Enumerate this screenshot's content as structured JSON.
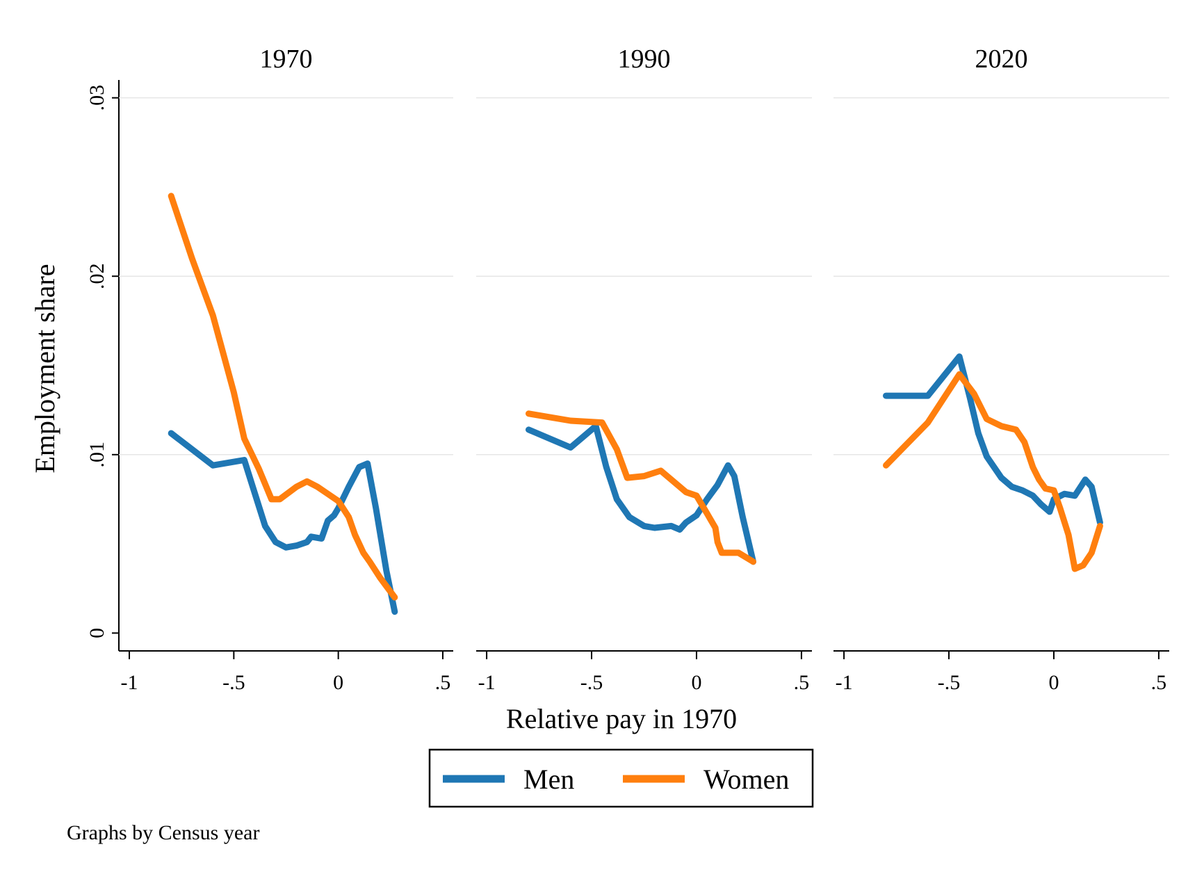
{
  "chart_data": {
    "type": "line",
    "xlabel": "Relative pay in 1970",
    "ylabel": "Employment share",
    "note": "Graphs by Census year",
    "xlim": [
      -1.05,
      0.55
    ],
    "ylim": [
      -0.001,
      0.031
    ],
    "xticks": [
      {
        "value": -1,
        "label": "-1"
      },
      {
        "value": -0.5,
        "label": "-.5"
      },
      {
        "value": 0,
        "label": "0"
      },
      {
        "value": 0.5,
        "label": ".5"
      }
    ],
    "yticks": [
      {
        "value": 0,
        "label": "0"
      },
      {
        "value": 0.01,
        "label": ".01"
      },
      {
        "value": 0.02,
        "label": ".02"
      },
      {
        "value": 0.03,
        "label": ".03"
      }
    ],
    "grid": true,
    "legend": {
      "position": "bottom",
      "entries": [
        {
          "name": "Men",
          "color": "#1f77b4"
        },
        {
          "name": "Women",
          "color": "#ff7f0e"
        }
      ]
    },
    "colors": {
      "Men": "#1f77b4",
      "Women": "#ff7f0e"
    },
    "panels": [
      {
        "title": "1970",
        "series": [
          {
            "name": "Men",
            "points": [
              [
                -0.8,
                0.0112
              ],
              [
                -0.6,
                0.0094
              ],
              [
                -0.45,
                0.0097
              ],
              [
                -0.35,
                0.006
              ],
              [
                -0.3,
                0.0051
              ],
              [
                -0.25,
                0.0048
              ],
              [
                -0.2,
                0.0049
              ],
              [
                -0.15,
                0.0051
              ],
              [
                -0.13,
                0.0054
              ],
              [
                -0.08,
                0.0053
              ],
              [
                -0.05,
                0.0063
              ],
              [
                -0.02,
                0.0066
              ],
              [
                0.0,
                0.007
              ],
              [
                0.05,
                0.0082
              ],
              [
                0.1,
                0.0093
              ],
              [
                0.14,
                0.0095
              ],
              [
                0.18,
                0.007
              ],
              [
                0.23,
                0.0035
              ],
              [
                0.27,
                0.0012
              ]
            ]
          },
          {
            "name": "Women",
            "points": [
              [
                -0.8,
                0.0245
              ],
              [
                -0.7,
                0.021
              ],
              [
                -0.6,
                0.0178
              ],
              [
                -0.5,
                0.0135
              ],
              [
                -0.45,
                0.0109
              ],
              [
                -0.38,
                0.0092
              ],
              [
                -0.32,
                0.0075
              ],
              [
                -0.28,
                0.0075
              ],
              [
                -0.2,
                0.0082
              ],
              [
                -0.15,
                0.0085
              ],
              [
                -0.1,
                0.0082
              ],
              [
                -0.05,
                0.0078
              ],
              [
                0.0,
                0.0074
              ],
              [
                0.05,
                0.0065
              ],
              [
                0.08,
                0.0055
              ],
              [
                0.12,
                0.0045
              ],
              [
                0.15,
                0.004
              ],
              [
                0.2,
                0.0031
              ],
              [
                0.27,
                0.002
              ]
            ]
          }
        ]
      },
      {
        "title": "1990",
        "series": [
          {
            "name": "Men",
            "points": [
              [
                -0.8,
                0.0114
              ],
              [
                -0.6,
                0.0104
              ],
              [
                -0.48,
                0.0116
              ],
              [
                -0.43,
                0.0093
              ],
              [
                -0.38,
                0.0075
              ],
              [
                -0.32,
                0.0065
              ],
              [
                -0.25,
                0.006
              ],
              [
                -0.2,
                0.0059
              ],
              [
                -0.12,
                0.006
              ],
              [
                -0.08,
                0.0058
              ],
              [
                -0.05,
                0.0062
              ],
              [
                0.0,
                0.0066
              ],
              [
                0.05,
                0.0075
              ],
              [
                0.1,
                0.0083
              ],
              [
                0.15,
                0.0094
              ],
              [
                0.18,
                0.0088
              ],
              [
                0.22,
                0.0065
              ],
              [
                0.27,
                0.004
              ]
            ]
          },
          {
            "name": "Women",
            "points": [
              [
                -0.8,
                0.0123
              ],
              [
                -0.6,
                0.0119
              ],
              [
                -0.45,
                0.0118
              ],
              [
                -0.38,
                0.0103
              ],
              [
                -0.33,
                0.0087
              ],
              [
                -0.25,
                0.0088
              ],
              [
                -0.17,
                0.0091
              ],
              [
                -0.12,
                0.0086
              ],
              [
                -0.05,
                0.0079
              ],
              [
                0.0,
                0.0077
              ],
              [
                0.05,
                0.0067
              ],
              [
                0.09,
                0.0059
              ],
              [
                0.1,
                0.0051
              ],
              [
                0.12,
                0.0045
              ],
              [
                0.2,
                0.0045
              ],
              [
                0.27,
                0.004
              ]
            ]
          }
        ]
      },
      {
        "title": "2020",
        "series": [
          {
            "name": "Men",
            "points": [
              [
                -0.8,
                0.0133
              ],
              [
                -0.6,
                0.0133
              ],
              [
                -0.45,
                0.0155
              ],
              [
                -0.4,
                0.0132
              ],
              [
                -0.36,
                0.0112
              ],
              [
                -0.32,
                0.0099
              ],
              [
                -0.25,
                0.0087
              ],
              [
                -0.2,
                0.0082
              ],
              [
                -0.15,
                0.008
              ],
              [
                -0.1,
                0.0077
              ],
              [
                -0.06,
                0.0072
              ],
              [
                -0.02,
                0.0068
              ],
              [
                0.0,
                0.0075
              ],
              [
                0.05,
                0.0078
              ],
              [
                0.1,
                0.0077
              ],
              [
                0.15,
                0.0086
              ],
              [
                0.18,
                0.0082
              ],
              [
                0.22,
                0.0062
              ]
            ]
          },
          {
            "name": "Women",
            "points": [
              [
                -0.8,
                0.0094
              ],
              [
                -0.6,
                0.0118
              ],
              [
                -0.45,
                0.0145
              ],
              [
                -0.38,
                0.0134
              ],
              [
                -0.32,
                0.012
              ],
              [
                -0.25,
                0.0116
              ],
              [
                -0.18,
                0.0114
              ],
              [
                -0.14,
                0.0107
              ],
              [
                -0.1,
                0.0093
              ],
              [
                -0.07,
                0.0086
              ],
              [
                -0.04,
                0.0081
              ],
              [
                0.0,
                0.008
              ],
              [
                0.03,
                0.007
              ],
              [
                0.07,
                0.0055
              ],
              [
                0.1,
                0.0036
              ],
              [
                0.14,
                0.0038
              ],
              [
                0.18,
                0.0045
              ],
              [
                0.22,
                0.006
              ]
            ]
          }
        ]
      }
    ]
  }
}
